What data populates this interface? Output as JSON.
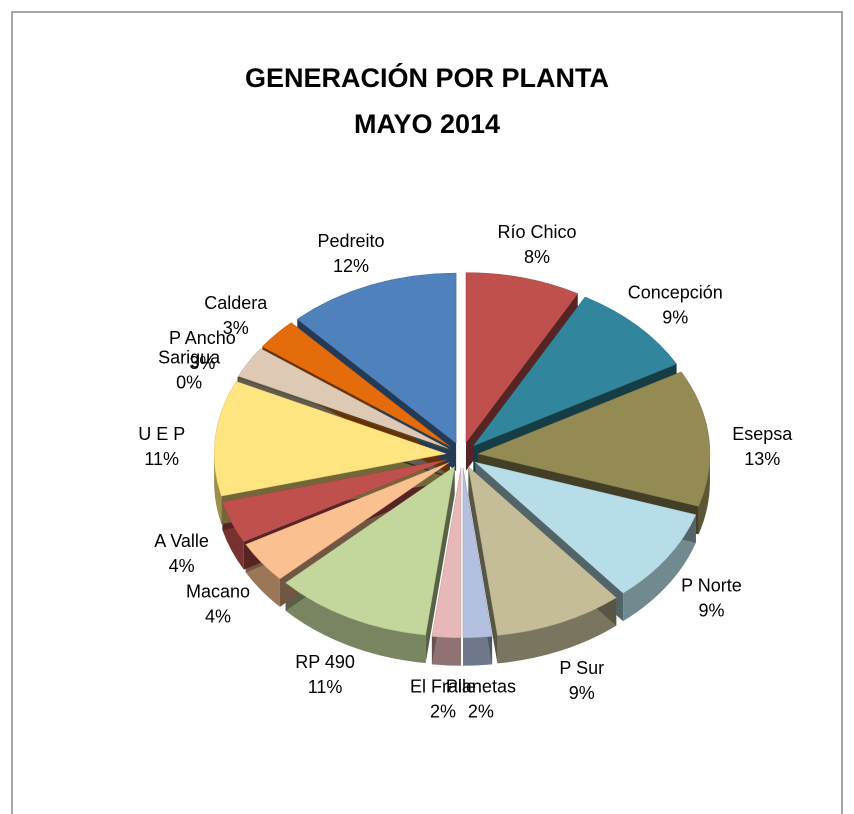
{
  "chart_data": {
    "type": "pie3d",
    "title": [
      "GENERACIÓN  POR  PLANTA",
      "MAYO  2014"
    ],
    "categories": [
      "Río Chico",
      "Concepción",
      "Esepsa",
      "P Norte",
      "P Sur",
      "Planetas",
      "El Fraile",
      "RP 490",
      "Macano",
      "A Valle",
      "U E P",
      "Sarigua",
      "P Ancho",
      "Caldera",
      "Pedreito"
    ],
    "values": [
      8,
      9,
      13,
      9,
      9,
      2,
      2,
      11,
      4,
      4,
      11,
      0,
      3,
      3,
      12
    ],
    "value_labels": [
      "8%",
      "9%",
      "13%",
      "9%",
      "9%",
      "2%",
      "2%",
      "11%",
      "4%",
      "4%",
      "11%",
      "0%",
      "3%",
      "3%",
      "12%"
    ],
    "colors": [
      "#c0504d",
      "#31859c",
      "#948a54",
      "#b7dee8",
      "#c4bd97",
      "#b3c0e0",
      "#e6b9b8",
      "#c3d69b",
      "#fac090",
      "#c0504d",
      "#ffe57f",
      "#4f6228",
      "#ddc9b4",
      "#e46c0a",
      "#4f81bd"
    ]
  }
}
